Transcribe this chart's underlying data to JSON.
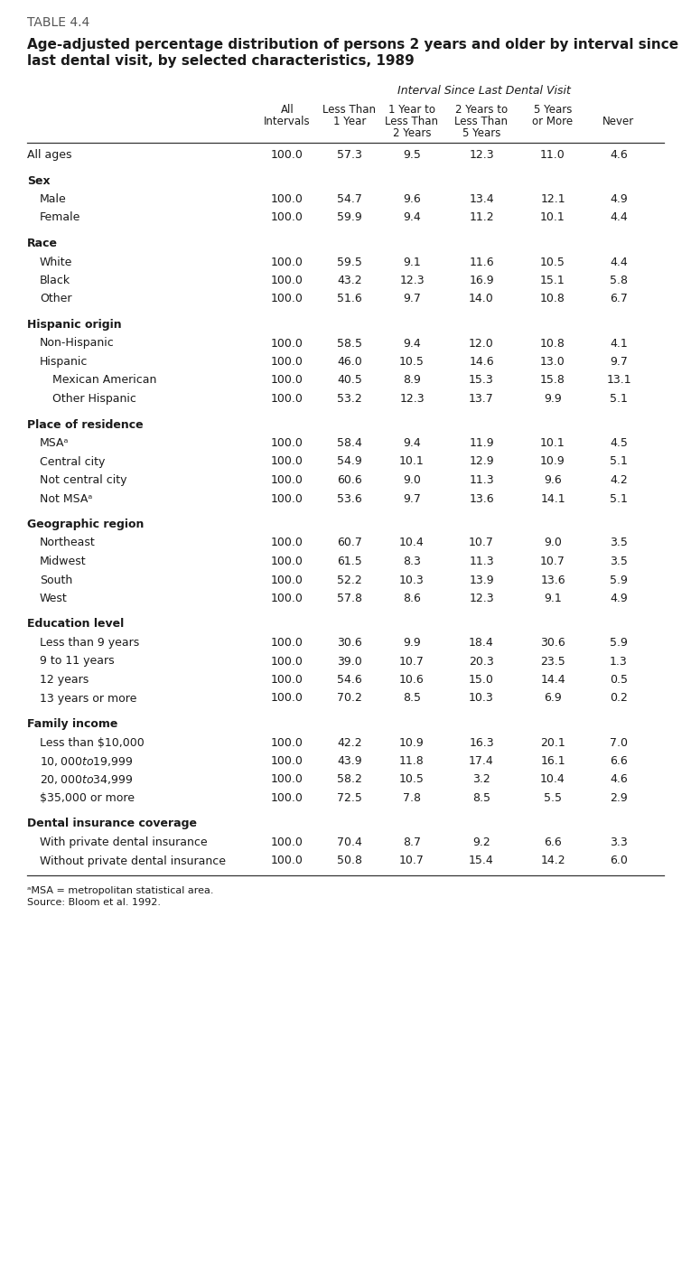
{
  "table_label": "TABLE 4.4",
  "title_line1": "Age-adjusted percentage distribution of persons 2 years and older by interval since",
  "title_line2": "last dental visit, by selected characteristics, 1989",
  "col_header_main": "Interval Since Last Dental Visit",
  "col_header_row1": [
    "All",
    "Less Than",
    "1 Year to",
    "2 Years to",
    "5 Years",
    ""
  ],
  "col_header_row2": [
    "Intervals",
    "1 Year",
    "Less Than",
    "Less Than",
    "or More",
    "Never"
  ],
  "col_header_row3": [
    "",
    "",
    "2 Years",
    "5 Years",
    "",
    ""
  ],
  "rows": [
    {
      "label": "All ages",
      "indent": 0,
      "bold": false,
      "section": false,
      "data": [
        "100.0",
        "57.3",
        "9.5",
        "12.3",
        "11.0",
        "4.6"
      ]
    },
    {
      "label": "Sex",
      "indent": 0,
      "bold": true,
      "section": true,
      "data": null
    },
    {
      "label": "Male",
      "indent": 1,
      "bold": false,
      "section": false,
      "data": [
        "100.0",
        "54.7",
        "9.6",
        "13.4",
        "12.1",
        "4.9"
      ]
    },
    {
      "label": "Female",
      "indent": 1,
      "bold": false,
      "section": false,
      "data": [
        "100.0",
        "59.9",
        "9.4",
        "11.2",
        "10.1",
        "4.4"
      ]
    },
    {
      "label": "Race",
      "indent": 0,
      "bold": true,
      "section": true,
      "data": null
    },
    {
      "label": "White",
      "indent": 1,
      "bold": false,
      "section": false,
      "data": [
        "100.0",
        "59.5",
        "9.1",
        "11.6",
        "10.5",
        "4.4"
      ]
    },
    {
      "label": "Black",
      "indent": 1,
      "bold": false,
      "section": false,
      "data": [
        "100.0",
        "43.2",
        "12.3",
        "16.9",
        "15.1",
        "5.8"
      ]
    },
    {
      "label": "Other",
      "indent": 1,
      "bold": false,
      "section": false,
      "data": [
        "100.0",
        "51.6",
        "9.7",
        "14.0",
        "10.8",
        "6.7"
      ]
    },
    {
      "label": "Hispanic origin",
      "indent": 0,
      "bold": true,
      "section": true,
      "data": null
    },
    {
      "label": "Non-Hispanic",
      "indent": 1,
      "bold": false,
      "section": false,
      "data": [
        "100.0",
        "58.5",
        "9.4",
        "12.0",
        "10.8",
        "4.1"
      ]
    },
    {
      "label": "Hispanic",
      "indent": 1,
      "bold": false,
      "section": false,
      "data": [
        "100.0",
        "46.0",
        "10.5",
        "14.6",
        "13.0",
        "9.7"
      ]
    },
    {
      "label": "Mexican American",
      "indent": 2,
      "bold": false,
      "section": false,
      "data": [
        "100.0",
        "40.5",
        "8.9",
        "15.3",
        "15.8",
        "13.1"
      ]
    },
    {
      "label": "Other Hispanic",
      "indent": 2,
      "bold": false,
      "section": false,
      "data": [
        "100.0",
        "53.2",
        "12.3",
        "13.7",
        "9.9",
        "5.1"
      ]
    },
    {
      "label": "Place of residence",
      "indent": 0,
      "bold": true,
      "section": true,
      "data": null
    },
    {
      "label": "MSAᵃ",
      "indent": 1,
      "bold": false,
      "section": false,
      "data": [
        "100.0",
        "58.4",
        "9.4",
        "11.9",
        "10.1",
        "4.5"
      ]
    },
    {
      "label": "Central city",
      "indent": 1,
      "bold": false,
      "section": false,
      "data": [
        "100.0",
        "54.9",
        "10.1",
        "12.9",
        "10.9",
        "5.1"
      ]
    },
    {
      "label": "Not central city",
      "indent": 1,
      "bold": false,
      "section": false,
      "data": [
        "100.0",
        "60.6",
        "9.0",
        "11.3",
        "9.6",
        "4.2"
      ]
    },
    {
      "label": "Not MSAᵃ",
      "indent": 1,
      "bold": false,
      "section": false,
      "data": [
        "100.0",
        "53.6",
        "9.7",
        "13.6",
        "14.1",
        "5.1"
      ]
    },
    {
      "label": "Geographic region",
      "indent": 0,
      "bold": true,
      "section": true,
      "data": null
    },
    {
      "label": "Northeast",
      "indent": 1,
      "bold": false,
      "section": false,
      "data": [
        "100.0",
        "60.7",
        "10.4",
        "10.7",
        "9.0",
        "3.5"
      ]
    },
    {
      "label": "Midwest",
      "indent": 1,
      "bold": false,
      "section": false,
      "data": [
        "100.0",
        "61.5",
        "8.3",
        "11.3",
        "10.7",
        "3.5"
      ]
    },
    {
      "label": "South",
      "indent": 1,
      "bold": false,
      "section": false,
      "data": [
        "100.0",
        "52.2",
        "10.3",
        "13.9",
        "13.6",
        "5.9"
      ]
    },
    {
      "label": "West",
      "indent": 1,
      "bold": false,
      "section": false,
      "data": [
        "100.0",
        "57.8",
        "8.6",
        "12.3",
        "9.1",
        "4.9"
      ]
    },
    {
      "label": "Education level",
      "indent": 0,
      "bold": true,
      "section": true,
      "data": null
    },
    {
      "label": "Less than 9 years",
      "indent": 1,
      "bold": false,
      "section": false,
      "data": [
        "100.0",
        "30.6",
        "9.9",
        "18.4",
        "30.6",
        "5.9"
      ]
    },
    {
      "label": "9 to 11 years",
      "indent": 1,
      "bold": false,
      "section": false,
      "data": [
        "100.0",
        "39.0",
        "10.7",
        "20.3",
        "23.5",
        "1.3"
      ]
    },
    {
      "label": "12 years",
      "indent": 1,
      "bold": false,
      "section": false,
      "data": [
        "100.0",
        "54.6",
        "10.6",
        "15.0",
        "14.4",
        "0.5"
      ]
    },
    {
      "label": "13 years or more",
      "indent": 1,
      "bold": false,
      "section": false,
      "data": [
        "100.0",
        "70.2",
        "8.5",
        "10.3",
        "6.9",
        "0.2"
      ]
    },
    {
      "label": "Family income",
      "indent": 0,
      "bold": true,
      "section": true,
      "data": null
    },
    {
      "label": "Less than $10,000",
      "indent": 1,
      "bold": false,
      "section": false,
      "data": [
        "100.0",
        "42.2",
        "10.9",
        "16.3",
        "20.1",
        "7.0"
      ]
    },
    {
      "label": "$10,000 to $19,999",
      "indent": 1,
      "bold": false,
      "section": false,
      "data": [
        "100.0",
        "43.9",
        "11.8",
        "17.4",
        "16.1",
        "6.6"
      ]
    },
    {
      "label": "$20,000 to $34,999",
      "indent": 1,
      "bold": false,
      "section": false,
      "data": [
        "100.0",
        "58.2",
        "10.5",
        "3.2",
        "10.4",
        "4.6"
      ]
    },
    {
      "label": "$35,000 or more",
      "indent": 1,
      "bold": false,
      "section": false,
      "data": [
        "100.0",
        "72.5",
        "7.8",
        "8.5",
        "5.5",
        "2.9"
      ]
    },
    {
      "label": "Dental insurance coverage",
      "indent": 0,
      "bold": true,
      "section": true,
      "data": null
    },
    {
      "label": "With private dental insurance",
      "indent": 1,
      "bold": false,
      "section": false,
      "data": [
        "100.0",
        "70.4",
        "8.7",
        "9.2",
        "6.6",
        "3.3"
      ]
    },
    {
      "label": "Without private dental insurance",
      "indent": 1,
      "bold": false,
      "section": false,
      "data": [
        "100.0",
        "50.8",
        "10.7",
        "15.4",
        "14.2",
        "6.0"
      ]
    }
  ],
  "footnote": "ᵃMSA = metropolitan statistical area.",
  "source": "Source: Bloom et al. 1992.",
  "bg_color": "#ffffff",
  "text_color": "#1a1a1a",
  "label_color": "#555555",
  "line_color": "#333333"
}
